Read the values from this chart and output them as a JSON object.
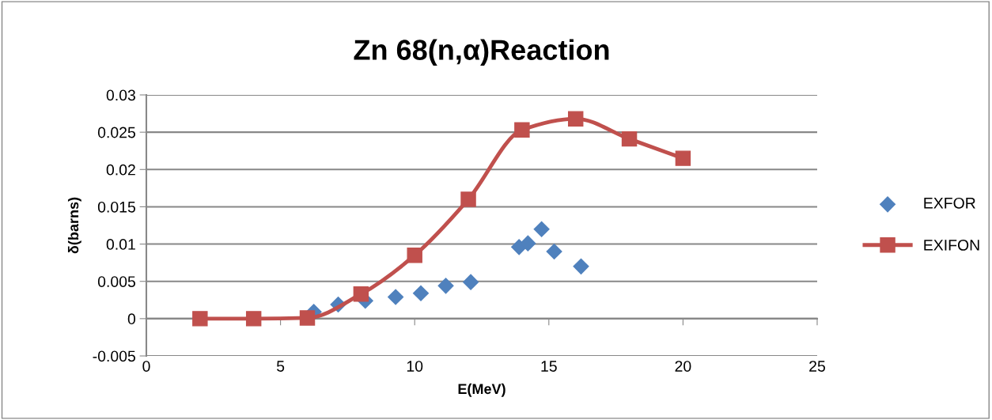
{
  "chart_data": {
    "type": "scatter",
    "title": "Zn 68(n,α)Reaction",
    "xlabel": "E(MeV)",
    "ylabel": "δ(barns)",
    "xlim": [
      0,
      25
    ],
    "xticks": [
      0,
      5,
      10,
      15,
      20,
      25
    ],
    "ylim": [
      -0.005,
      0.03
    ],
    "yticks": [
      {
        "value": -0.005,
        "label": "-0.005"
      },
      0,
      0.005,
      0.01,
      0.015,
      0.02,
      0.025,
      0.03
    ],
    "grid": "y",
    "legend": "right",
    "series": [
      {
        "name": "EXFOR",
        "marker": "diamond",
        "color": "#4f81bd",
        "x": [
          6.24,
          7.15,
          8.16,
          9.29,
          10.23,
          11.16,
          12.09,
          13.89,
          14.22,
          14.73,
          15.2,
          16.2
        ],
        "values": [
          0.0009,
          0.0019,
          0.0024,
          0.0029,
          0.0034,
          0.0044,
          0.0049,
          0.0096,
          0.0101,
          0.012,
          0.009,
          0.007
        ]
      },
      {
        "name": "EXIFON",
        "type": "line",
        "marker": "square",
        "line_style": "solid",
        "color": "#c0504d",
        "x": [
          2,
          4,
          6,
          8,
          10,
          12,
          14,
          16,
          18,
          20
        ],
        "values": [
          0,
          0,
          0.0001,
          0.0033,
          0.0085,
          0.016,
          0.0253,
          0.0268,
          0.0241,
          0.0215
        ]
      }
    ]
  }
}
